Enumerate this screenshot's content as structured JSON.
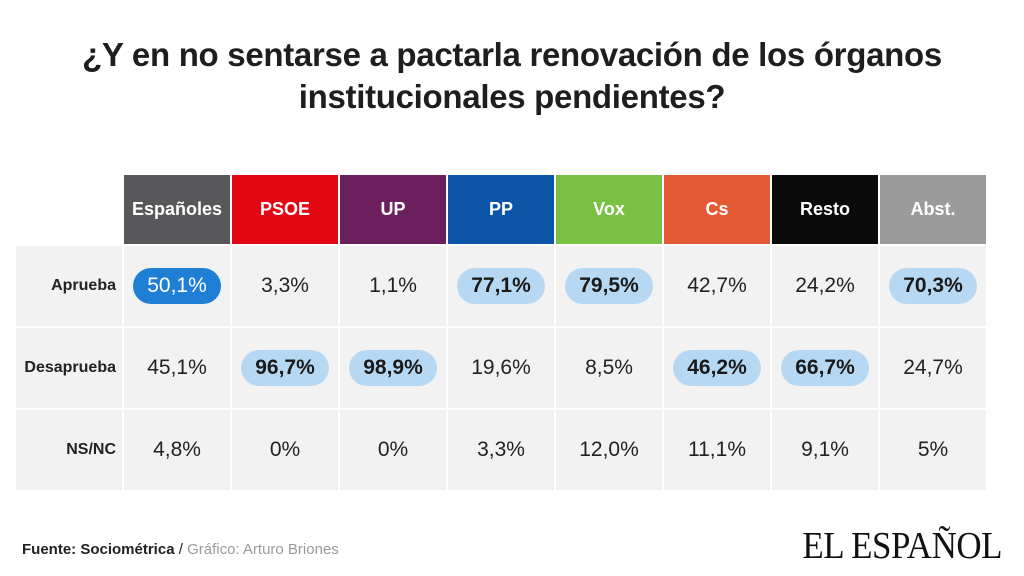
{
  "title": {
    "line1": "¿Y en no sentarse a pactarla renovación de los órganos",
    "line2": "institucionales pendientes?"
  },
  "chart_data": {
    "type": "table",
    "columns": [
      {
        "label": "Españoles",
        "color": "#58585a"
      },
      {
        "label": "PSOE",
        "color": "#e30613"
      },
      {
        "label": "UP",
        "color": "#6b1f5c"
      },
      {
        "label": "PP",
        "color": "#0b55a6"
      },
      {
        "label": "Vox",
        "color": "#7ac143"
      },
      {
        "label": "Cs",
        "color": "#e35a35"
      },
      {
        "label": "Resto",
        "color": "#0a0a0a"
      },
      {
        "label": "Abst.",
        "color": "#9b9b9b"
      }
    ],
    "rows": [
      {
        "label": "Aprueba",
        "cells": [
          {
            "text": "50,1%",
            "value": 50.1,
            "highlight": "strong"
          },
          {
            "text": "3,3%",
            "value": 3.3,
            "highlight": ""
          },
          {
            "text": "1,1%",
            "value": 1.1,
            "highlight": ""
          },
          {
            "text": "77,1%",
            "value": 77.1,
            "highlight": "light"
          },
          {
            "text": "79,5%",
            "value": 79.5,
            "highlight": "light"
          },
          {
            "text": "42,7%",
            "value": 42.7,
            "highlight": ""
          },
          {
            "text": "24,2%",
            "value": 24.2,
            "highlight": ""
          },
          {
            "text": "70,3%",
            "value": 70.3,
            "highlight": "light"
          }
        ]
      },
      {
        "label": "Desaprueba",
        "cells": [
          {
            "text": "45,1%",
            "value": 45.1,
            "highlight": ""
          },
          {
            "text": "96,7%",
            "value": 96.7,
            "highlight": "light"
          },
          {
            "text": "98,9%",
            "value": 98.9,
            "highlight": "light"
          },
          {
            "text": "19,6%",
            "value": 19.6,
            "highlight": ""
          },
          {
            "text": "8,5%",
            "value": 8.5,
            "highlight": ""
          },
          {
            "text": "46,2%",
            "value": 46.2,
            "highlight": "light"
          },
          {
            "text": "66,7%",
            "value": 66.7,
            "highlight": "light"
          },
          {
            "text": "24,7%",
            "value": 24.7,
            "highlight": ""
          }
        ]
      },
      {
        "label": "NS/NC",
        "cells": [
          {
            "text": "4,8%",
            "value": 4.8,
            "highlight": ""
          },
          {
            "text": "0%",
            "value": 0,
            "highlight": ""
          },
          {
            "text": "0%",
            "value": 0,
            "highlight": ""
          },
          {
            "text": "3,3%",
            "value": 3.3,
            "highlight": ""
          },
          {
            "text": "12,0%",
            "value": 12.0,
            "highlight": ""
          },
          {
            "text": "11,1%",
            "value": 11.1,
            "highlight": ""
          },
          {
            "text": "9,1%",
            "value": 9.1,
            "highlight": ""
          },
          {
            "text": "5%",
            "value": 5,
            "highlight": ""
          }
        ]
      }
    ]
  },
  "footer": {
    "source_label": "Fuente: Sociométrica",
    "separator": " / ",
    "credit": "Gráfico: Arturo Briones"
  },
  "logo": "EL ESPAÑOL"
}
